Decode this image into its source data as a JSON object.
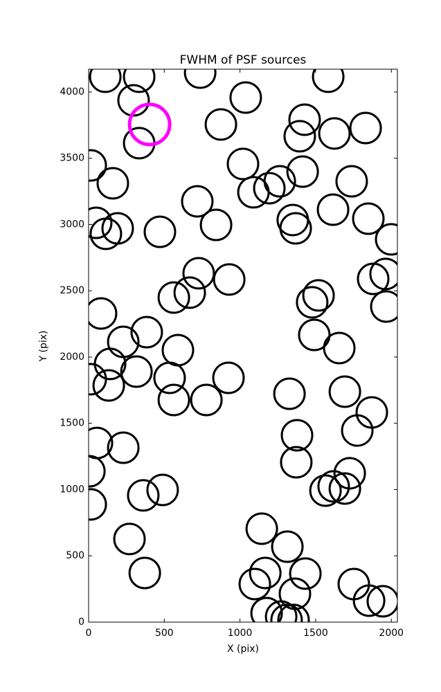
{
  "chart_data": {
    "type": "scatter",
    "title": "FWHM of PSF sources",
    "x_label": "X (pix)",
    "y_label": "Y (pix)",
    "xlim": [
      0,
      2040
    ],
    "ylim": [
      0,
      4172
    ],
    "xticks": [
      0,
      500,
      1000,
      1500,
      2000
    ],
    "yticks": [
      0,
      500,
      1000,
      1500,
      2000,
      2500,
      3000,
      3500,
      4000
    ],
    "grid": false,
    "series": [
      {
        "color": "#000000",
        "x": [
          110,
          334,
          297,
          737,
          1038,
          1583,
          334,
          874,
          1427,
          1395,
          1624,
          1830,
          14,
          160,
          1020,
          1263,
          1194,
          1089,
          1414,
          1738,
          718,
          842,
          50,
          192,
          114,
          471,
          1349,
          1368,
          1615,
          1848,
          1999,
          1962,
          1880,
          1967,
          727,
          929,
          668,
          563,
          1519,
          1477,
          82,
          384,
          229,
          590,
          1491,
          1656,
          142,
          316,
          14,
          133,
          535,
          924,
          563,
          778,
          1327,
          1693,
          1871,
          1775,
          1377,
          55,
          229,
          5,
          1372,
          1725,
          1619,
          1565,
          1693,
          14,
          361,
          489,
          270,
          1144,
          1313,
          371,
          1167,
          1098,
          1432,
          1752,
          1363,
          1853,
          1944,
          1176,
          1272,
          1308,
          1354
        ],
        "y": [
          4115,
          4115,
          3937,
          4146,
          3958,
          4115,
          3614,
          3755,
          3791,
          3666,
          3687,
          3728,
          3446,
          3311,
          3457,
          3326,
          3274,
          3243,
          3399,
          3326,
          3175,
          2997,
          3013,
          2971,
          2930,
          2945,
          3034,
          2971,
          3112,
          3044,
          2888,
          2627,
          2590,
          2381,
          2632,
          2585,
          2486,
          2449,
          2465,
          2413,
          2329,
          2188,
          2115,
          2052,
          2167,
          2068,
          1948,
          1890,
          1833,
          1786,
          1843,
          1843,
          1676,
          1676,
          1723,
          1739,
          1582,
          1446,
          1410,
          1352,
          1316,
          1138,
          1206,
          1123,
          1024,
          992,
          1008,
          888,
          956,
          997,
          627,
          705,
          569,
          371,
          371,
          287,
          366,
          287,
          214,
          162,
          157,
          68,
          42,
          16,
          16
        ]
      },
      {
        "color": "#ff00ff",
        "x": [
          403
        ],
        "y": [
          3755
        ]
      }
    ]
  }
}
